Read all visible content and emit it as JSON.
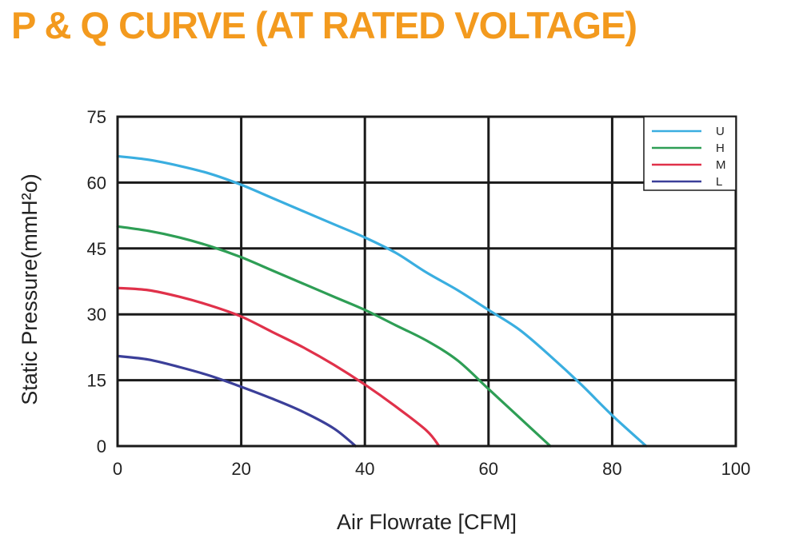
{
  "title": "P & Q CURVE (AT RATED VOLTAGE)",
  "chart_data": {
    "type": "line",
    "title": "P & Q CURVE (AT RATED VOLTAGE)",
    "xlabel": "Air  Flowrate   [CFM]",
    "ylabel": "Static Pressure(mmH²o)",
    "xlim": [
      0,
      100
    ],
    "ylim": [
      0,
      75
    ],
    "xticks": [
      0,
      20,
      40,
      60,
      80,
      100
    ],
    "yticks": [
      0,
      15,
      30,
      45,
      60,
      75
    ],
    "grid": true,
    "legend_position": "top-right",
    "series": [
      {
        "name": "U",
        "color": "#3aaee0",
        "x": [
          0,
          5,
          10,
          15,
          20,
          25,
          30,
          35,
          40,
          45,
          50,
          55,
          60,
          65,
          70,
          75,
          80,
          85.5
        ],
        "y": [
          66,
          65.2,
          63.8,
          62,
          59.5,
          56.5,
          53.5,
          50.5,
          47.5,
          44,
          39.5,
          35.5,
          31,
          26.5,
          20.5,
          14,
          7,
          0
        ]
      },
      {
        "name": "H",
        "color": "#2e9e55",
        "x": [
          0,
          5,
          10,
          15,
          20,
          25,
          30,
          35,
          40,
          45,
          50,
          55,
          60,
          65,
          70
        ],
        "y": [
          50,
          49,
          47.5,
          45.5,
          43,
          40,
          37,
          34,
          31,
          27.5,
          24,
          19.5,
          13,
          6.5,
          0
        ]
      },
      {
        "name": "M",
        "color": "#e0314a",
        "x": [
          0,
          5,
          10,
          15,
          20,
          25,
          30,
          35,
          40,
          45,
          50,
          52
        ],
        "y": [
          36,
          35.5,
          34,
          32,
          29.5,
          26,
          22.5,
          18.5,
          14,
          9,
          3.5,
          0
        ]
      },
      {
        "name": "L",
        "color": "#3b3f99",
        "x": [
          0,
          5,
          10,
          15,
          20,
          25,
          30,
          35,
          38.5
        ],
        "y": [
          20.5,
          19.7,
          18,
          16,
          13.5,
          10.8,
          7.8,
          4,
          0
        ]
      }
    ]
  }
}
